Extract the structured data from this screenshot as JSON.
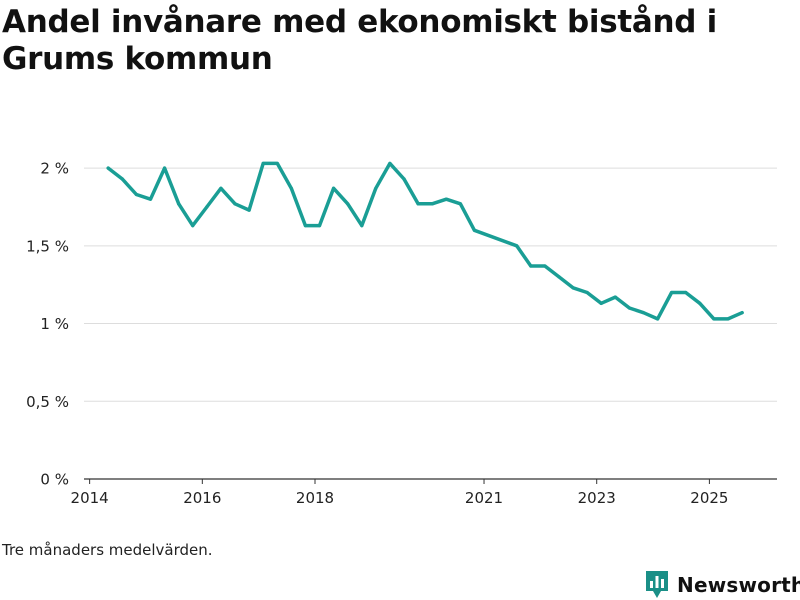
{
  "title": "Andel invånare med ekonomiskt bistånd i Grums kommun",
  "footnote": "Tre månaders medelvärden.",
  "brand": {
    "name": "Newsworthy",
    "icon": "newsworthy-logo-icon",
    "color": "#1a8f87"
  },
  "colors": {
    "line": "#1a9e95",
    "grid": "#dddddd",
    "axis": "#333333",
    "text": "#222222"
  },
  "chart_data": {
    "type": "line",
    "title": "Andel invånare med ekonomiskt bistånd i Grums kommun",
    "xlabel": "",
    "ylabel": "",
    "ylim": [
      0,
      2.2
    ],
    "xlim": [
      2013.9,
      2026.2
    ],
    "yticks": [
      {
        "value": 0,
        "label": "0 %"
      },
      {
        "value": 0.5,
        "label": "0,5 %"
      },
      {
        "value": 1,
        "label": "1 %"
      },
      {
        "value": 1.5,
        "label": "1,5 %"
      },
      {
        "value": 2,
        "label": "2 %"
      }
    ],
    "xticks": [
      {
        "value": 2014,
        "label": "2014"
      },
      {
        "value": 2016,
        "label": "2016"
      },
      {
        "value": 2018,
        "label": "2018"
      },
      {
        "value": 2021,
        "label": "2021"
      },
      {
        "value": 2023,
        "label": "2023"
      },
      {
        "value": 2025,
        "label": "2025"
      }
    ],
    "grid": true,
    "series": [
      {
        "name": "Andel invånare med ekonomiskt bistånd",
        "x": [
          2014.33,
          2014.58,
          2014.83,
          2015.08,
          2015.33,
          2015.58,
          2015.83,
          2016.08,
          2016.33,
          2016.58,
          2016.83,
          2017.08,
          2017.33,
          2017.58,
          2017.83,
          2018.08,
          2018.33,
          2018.58,
          2018.83,
          2019.08,
          2019.33,
          2019.58,
          2019.83,
          2020.08,
          2020.33,
          2020.58,
          2020.83,
          2021.58,
          2021.83,
          2022.08,
          2022.33,
          2022.58,
          2022.83,
          2023.08,
          2023.33,
          2023.58,
          2023.83,
          2024.08,
          2024.33,
          2024.58,
          2024.83,
          2025.08,
          2025.33,
          2025.58
        ],
        "values": [
          2.0,
          1.93,
          1.83,
          1.8,
          2.0,
          1.77,
          1.63,
          1.75,
          1.87,
          1.77,
          1.73,
          2.03,
          2.03,
          1.87,
          1.63,
          1.63,
          1.87,
          1.77,
          1.63,
          1.87,
          2.03,
          1.93,
          1.77,
          1.77,
          1.8,
          1.77,
          1.6,
          1.5,
          1.37,
          1.37,
          1.3,
          1.23,
          1.2,
          1.13,
          1.17,
          1.1,
          1.07,
          1.03,
          1.2,
          1.2,
          1.13,
          1.03,
          1.03,
          1.07
        ]
      }
    ]
  }
}
